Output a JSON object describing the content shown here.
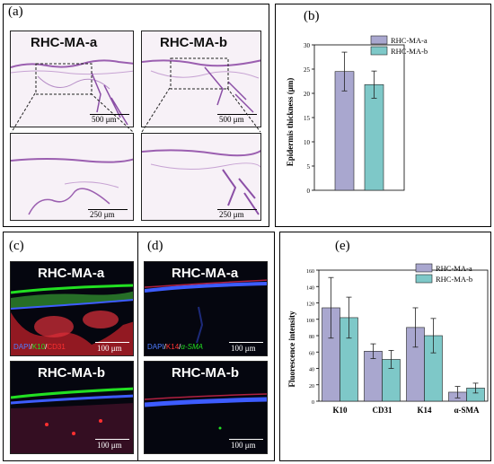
{
  "panel_labels": {
    "a": "(a)",
    "b": "(b)",
    "c": "(c)",
    "d": "(d)",
    "e": "(e)"
  },
  "micrographs": {
    "a_left_title": "RHC-MA-a",
    "a_right_title": "RHC-MA-b",
    "a_scale_top": "500 μm",
    "a_scale_bottom": "250 μm",
    "c_top_title": "RHC-MA-a",
    "c_bottom_title": "RHC-MA-b",
    "d_top_title": "RHC-MA-a",
    "d_bottom_title": "RHC-MA-b",
    "fluo_scale": "100 μm",
    "stain_c": {
      "dapi": "DAPI",
      "sep1": "/",
      "k10": "K10",
      "sep2": "/",
      "cd31": "CD31"
    },
    "stain_d": {
      "dapi": "DAPI",
      "sep1": "/",
      "k14": "K14",
      "sep2": "/",
      "asma": "α-SMA"
    }
  },
  "colors": {
    "series_a": "#a9a7cf",
    "series_b": "#7ec8c8",
    "dapi": "#4f7dff",
    "green": "#22e022",
    "red": "#ff3030"
  },
  "chart_data": [
    {
      "type": "bar",
      "ylabel": "Epidermis thickness (μm)",
      "ylim": [
        0,
        30
      ],
      "yticks": [
        0,
        5,
        10,
        15,
        20,
        25,
        30
      ],
      "categories": [
        ""
      ],
      "legend_position": "top-right",
      "series": [
        {
          "name": "RHC-MA-a",
          "values": [
            24.5
          ],
          "errors": [
            4
          ]
        },
        {
          "name": "RHC-MA-b",
          "values": [
            21.8
          ],
          "errors": [
            2.8
          ]
        }
      ]
    },
    {
      "type": "bar",
      "ylabel": "Fluorescence intensity",
      "ylim": [
        0,
        160
      ],
      "yticks": [
        0,
        20,
        40,
        60,
        80,
        100,
        120,
        140,
        160
      ],
      "categories": [
        "K10",
        "CD31",
        "K14",
        "α-SMA"
      ],
      "legend_position": "top-right",
      "series": [
        {
          "name": "RHC-MA-a",
          "values": [
            114,
            61,
            90,
            11
          ],
          "errors": [
            37,
            9,
            24,
            7
          ]
        },
        {
          "name": "RHC-MA-b",
          "values": [
            102,
            51,
            80,
            16
          ],
          "errors": [
            25,
            11,
            21,
            6
          ]
        }
      ]
    }
  ]
}
